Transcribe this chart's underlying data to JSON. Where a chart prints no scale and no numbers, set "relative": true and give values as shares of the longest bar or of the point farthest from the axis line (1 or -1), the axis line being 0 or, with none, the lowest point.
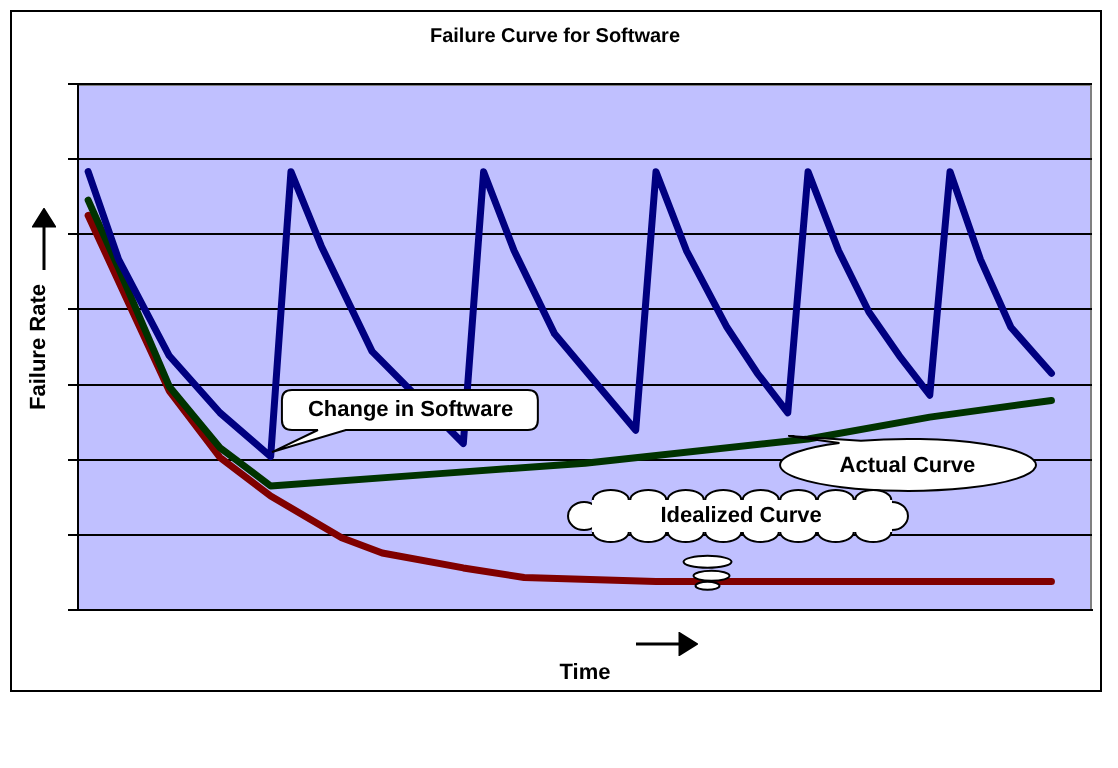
{
  "chart_data": {
    "type": "line",
    "title": "Failure Curve for Software",
    "xlabel": "Time",
    "ylabel": "Failure Rate",
    "relative": true,
    "grid": "y",
    "legend": false,
    "marker": "none",
    "line_style": "solid",
    "annotations": [
      "Change in Software",
      "Actual Curve",
      "Idealized Curve"
    ],
    "categories": [
      null,
      null,
      null,
      null,
      null,
      null,
      null,
      null,
      null,
      null,
      null,
      null,
      null,
      null,
      null,
      null,
      null,
      null,
      null,
      null,
      null,
      null,
      null,
      null,
      null,
      null,
      null,
      null,
      null,
      null,
      null,
      null,
      null,
      null,
      null,
      null,
      null,
      null,
      null,
      null,
      null,
      null,
      null,
      null,
      null,
      null,
      null,
      null,
      null,
      null,
      null,
      null,
      null,
      null,
      null,
      null,
      null,
      null,
      null,
      null,
      null,
      null,
      null,
      null,
      null,
      null,
      null,
      null,
      null,
      null,
      null,
      null,
      null,
      null,
      null,
      null,
      null,
      null,
      null,
      null,
      null,
      null,
      null,
      null,
      null,
      null,
      null,
      null,
      null,
      null,
      null,
      null,
      null,
      null,
      null,
      null,
      null,
      null,
      null,
      null,
      null
    ],
    "series": [
      {
        "color": "#000080",
        "values": [
          null,
          1,
          null,
          null,
          0.8,
          null,
          null,
          null,
          null,
          0.58,
          null,
          null,
          null,
          null,
          0.45,
          null,
          null,
          null,
          null,
          0.35,
          null,
          1,
          null,
          null,
          0.83,
          null,
          null,
          null,
          null,
          0.59,
          null,
          null,
          null,
          null,
          null,
          null,
          null,
          null,
          0.38,
          null,
          1,
          null,
          null,
          0.82,
          null,
          null,
          null,
          0.63,
          null,
          null,
          null,
          0.52,
          null,
          null,
          null,
          0.41,
          null,
          1,
          null,
          null,
          0.82,
          null,
          null,
          null,
          0.645,
          null,
          null,
          0.54,
          null,
          null,
          0.45,
          null,
          1,
          null,
          null,
          0.82,
          null,
          null,
          0.68,
          null,
          null,
          0.58,
          null,
          null,
          0.49,
          null,
          1,
          null,
          null,
          0.8,
          null,
          null,
          0.645,
          null,
          null,
          null,
          0.54,
          null,
          null,
          null,
          null
        ]
      },
      {
        "color": "#003300",
        "values": [
          null,
          0.935,
          null,
          null,
          0.78,
          null,
          null,
          null,
          null,
          0.51,
          null,
          null,
          null,
          null,
          0.37,
          null,
          null,
          null,
          null,
          0.283,
          null,
          null,
          null,
          null,
          null,
          null,
          null,
          null,
          null,
          null,
          null,
          null,
          null,
          null,
          null,
          0.31,
          null,
          null,
          null,
          null,
          null,
          null,
          null,
          null,
          null,
          null,
          null,
          null,
          null,
          null,
          0.335,
          null,
          null,
          null,
          null,
          null,
          null,
          null,
          null,
          null,
          null,
          null,
          null,
          null,
          null,
          null,
          null,
          null,
          null,
          null,
          null,
          null,
          0.39,
          null,
          null,
          null,
          null,
          null,
          null,
          null,
          null,
          null,
          null,
          null,
          0.44,
          null,
          null,
          null,
          null,
          null,
          null,
          null,
          null,
          null,
          null,
          null,
          0.478,
          null,
          null,
          null,
          null
        ]
      },
      {
        "color": "#800000",
        "values": [
          null,
          0.9,
          null,
          null,
          null,
          0.7,
          null,
          null,
          null,
          0.5,
          null,
          null,
          null,
          null,
          0.348,
          null,
          null,
          null,
          null,
          0.26,
          null,
          null,
          null,
          null,
          null,
          null,
          0.165,
          null,
          null,
          null,
          0.13,
          null,
          null,
          null,
          null,
          null,
          null,
          null,
          0.096,
          null,
          null,
          null,
          null,
          null,
          0.074,
          null,
          null,
          null,
          null,
          null,
          null,
          null,
          null,
          null,
          null,
          null,
          null,
          0.065,
          null,
          null,
          null,
          null,
          null,
          null,
          null,
          null,
          null,
          null,
          null,
          null,
          null,
          null,
          null,
          null,
          null,
          null,
          null,
          null,
          null,
          null,
          null,
          null,
          null,
          null,
          null,
          null,
          null,
          null,
          null,
          null,
          null,
          null,
          null,
          null,
          null,
          null,
          0.065,
          null,
          null,
          null,
          null
        ]
      }
    ]
  }
}
